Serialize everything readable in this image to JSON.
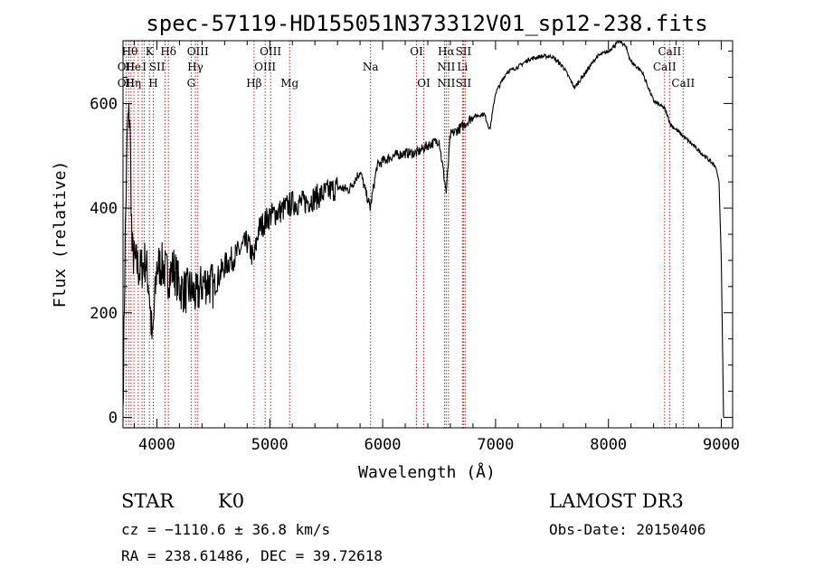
{
  "chart_data": {
    "type": "line",
    "title": "spec-57119-HD155051N373312V01_sp12-238.fits",
    "xlabel": "Wavelength (Å)",
    "ylabel": "Flux (relative)",
    "xlim": [
      3700,
      9100
    ],
    "ylim": [
      -20,
      720
    ],
    "xticks": [
      4000,
      5000,
      6000,
      7000,
      8000,
      9000
    ],
    "yticks": [
      0,
      200,
      400,
      600
    ],
    "grid": false,
    "series": [
      {
        "name": "spectrum",
        "x": [
          3700,
          3720,
          3740,
          3760,
          3780,
          3800,
          3850,
          3900,
          3930,
          3960,
          4000,
          4050,
          4100,
          4150,
          4200,
          4250,
          4300,
          4350,
          4400,
          4450,
          4500,
          4600,
          4700,
          4800,
          4860,
          4900,
          5000,
          5100,
          5200,
          5300,
          5400,
          5500,
          5600,
          5700,
          5800,
          5890,
          5950,
          6000,
          6100,
          6200,
          6300,
          6400,
          6500,
          6563,
          6600,
          6700,
          6800,
          6900,
          6950,
          7000,
          7100,
          7200,
          7300,
          7400,
          7500,
          7600,
          7700,
          7800,
          7900,
          8000,
          8100,
          8150,
          8200,
          8300,
          8400,
          8500,
          8550,
          8600,
          8700,
          8800,
          8900,
          8950,
          8980,
          9000,
          9020
        ],
        "y": [
          20,
          350,
          560,
          580,
          320,
          300,
          280,
          300,
          250,
          140,
          290,
          290,
          270,
          285,
          250,
          240,
          245,
          230,
          255,
          260,
          250,
          290,
          310,
          335,
          300,
          360,
          385,
          395,
          410,
          410,
          420,
          430,
          440,
          435,
          470,
          400,
          480,
          490,
          500,
          505,
          505,
          520,
          530,
          430,
          540,
          555,
          575,
          580,
          550,
          620,
          660,
          670,
          685,
          690,
          690,
          670,
          630,
          660,
          690,
          700,
          720,
          710,
          680,
          660,
          605,
          590,
          560,
          550,
          530,
          510,
          490,
          480,
          450,
          300,
          0
        ]
      }
    ],
    "lines": [
      {
        "wl": 3727,
        "labels": [
          "OII"
        ]
      },
      {
        "wl": 3750,
        "labels": [
          "Hθ"
        ]
      },
      {
        "wl": 3771,
        "labels": [
          "Hη"
        ]
      },
      {
        "wl": 3797,
        "labels": [
          "Hθ"
        ]
      },
      {
        "wl": 3835,
        "labels": [
          "Hη"
        ]
      },
      {
        "wl": 3869,
        "labels": [
          "OIII"
        ]
      },
      {
        "wl": 3889,
        "labels": [
          "HeI"
        ]
      },
      {
        "wl": 3934,
        "labels": [
          "K"
        ]
      },
      {
        "wl": 3968,
        "labels": [
          "H"
        ]
      },
      {
        "wl": 4072,
        "labels": [
          "SII"
        ]
      },
      {
        "wl": 4102,
        "labels": [
          "Hδ"
        ]
      },
      {
        "wl": 4304,
        "labels": [
          "G"
        ]
      },
      {
        "wl": 4341,
        "labels": [
          "Hγ"
        ]
      },
      {
        "wl": 4363,
        "labels": [
          "OIII"
        ]
      },
      {
        "wl": 4861,
        "labels": [
          "Hβ"
        ]
      },
      {
        "wl": 4959,
        "labels": [
          "OIII"
        ]
      },
      {
        "wl": 5007,
        "labels": [
          "OIII"
        ]
      },
      {
        "wl": 5176,
        "labels": [
          "Mg"
        ]
      },
      {
        "wl": 5893,
        "labels": [
          "Na"
        ]
      },
      {
        "wl": 6300,
        "labels": [
          "OI"
        ]
      },
      {
        "wl": 6364,
        "labels": [
          "OI"
        ]
      },
      {
        "wl": 6548,
        "labels": [
          "NII"
        ]
      },
      {
        "wl": 6563,
        "labels": [
          "Hα"
        ]
      },
      {
        "wl": 6583,
        "labels": [
          "NII"
        ]
      },
      {
        "wl": 6707,
        "labels": [
          "Li"
        ]
      },
      {
        "wl": 6716,
        "labels": [
          "SII"
        ]
      },
      {
        "wl": 6731,
        "labels": [
          "SII"
        ]
      },
      {
        "wl": 8498,
        "labels": [
          "CaII"
        ]
      },
      {
        "wl": 8542,
        "labels": [
          "CaII"
        ]
      },
      {
        "wl": 8662,
        "labels": [
          "CaII"
        ]
      }
    ],
    "line_labels": [
      {
        "text": "Hθ",
        "wl": 3760,
        "row": 0
      },
      {
        "text": "OII",
        "wl": 3727,
        "row": 1
      },
      {
        "text": "OII",
        "wl": 3727,
        "row": 2
      },
      {
        "text": "He",
        "wl": 3790,
        "row": 1
      },
      {
        "text": "Hη",
        "wl": 3790,
        "row": 2
      },
      {
        "text": "K",
        "wl": 3934,
        "row": 0
      },
      {
        "text": "I",
        "wl": 3889,
        "row": 1
      },
      {
        "text": "H",
        "wl": 3968,
        "row": 2
      },
      {
        "text": "SII",
        "wl": 4002,
        "row": 1
      },
      {
        "text": "Hδ",
        "wl": 4102,
        "row": 0
      },
      {
        "text": "OIII",
        "wl": 4363,
        "row": 0
      },
      {
        "text": "Hγ",
        "wl": 4341,
        "row": 1
      },
      {
        "text": "G",
        "wl": 4304,
        "row": 2
      },
      {
        "text": "Hβ",
        "wl": 4861,
        "row": 2
      },
      {
        "text": "OIII",
        "wl": 5007,
        "row": 0
      },
      {
        "text": "OIII",
        "wl": 4959,
        "row": 1
      },
      {
        "text": "Mg",
        "wl": 5176,
        "row": 2
      },
      {
        "text": "Na",
        "wl": 5893,
        "row": 1
      },
      {
        "text": "OI",
        "wl": 6300,
        "row": 0
      },
      {
        "text": "OI",
        "wl": 6364,
        "row": 2
      },
      {
        "text": "Hα",
        "wl": 6563,
        "row": 0
      },
      {
        "text": "SII",
        "wl": 6716,
        "row": 0
      },
      {
        "text": "NII",
        "wl": 6563,
        "row": 1
      },
      {
        "text": "Li",
        "wl": 6707,
        "row": 1
      },
      {
        "text": "NII",
        "wl": 6563,
        "row": 2
      },
      {
        "text": "SII",
        "wl": 6716,
        "row": 2
      },
      {
        "text": "CaII",
        "wl": 8542,
        "row": 0
      },
      {
        "text": "CaII",
        "wl": 8498,
        "row": 1
      },
      {
        "text": "CaII",
        "wl": 8662,
        "row": 2
      }
    ]
  },
  "info": {
    "object_class": "STAR",
    "subclass": "K0",
    "survey": "LAMOST DR3",
    "cz": "cz = −1110.6 ± 36.8 km/s",
    "obs_date": "Obs-Date: 20150406",
    "coords": "RA = 238.61486, DEC =  39.72618"
  },
  "colors": {
    "spectrum": "#000000",
    "line_marker": "#b22222",
    "axis": "#000000"
  }
}
